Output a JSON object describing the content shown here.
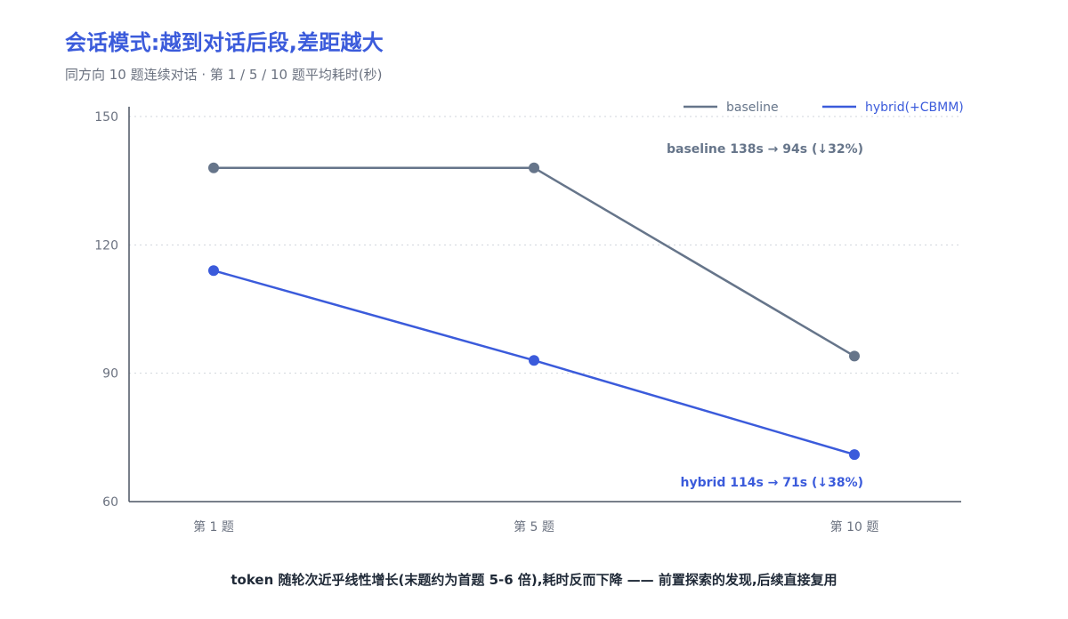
{
  "header": {
    "title": "会话模式:越到对话后段,差距越大",
    "subtitle": "同方向 10 题连续对话 · 第 1 / 5 / 10 题平均耗时(秒)"
  },
  "footer": {
    "note": "token 随轮次近乎线性增长(末题约为首题 5-6 倍),耗时反而下降 —— 前置探索的发现,后续直接复用"
  },
  "colors": {
    "baseline": "#66758a",
    "hybrid": "#3b5bdb",
    "grid": "#d1d5db",
    "axis": "#4b5563"
  },
  "chart_data": {
    "type": "line",
    "categories": [
      "第 1 题",
      "第 5 题",
      "第 10 题"
    ],
    "series": [
      {
        "name": "baseline",
        "values": [
          138,
          138,
          94
        ]
      },
      {
        "name": "hybrid(+CBMM)",
        "values": [
          114,
          93,
          71
        ]
      }
    ],
    "ylim": [
      60,
      150
    ],
    "yticks": [
      60,
      90,
      120,
      150
    ],
    "grid": true,
    "legend_position": "top-right",
    "annotations": {
      "baseline": "baseline 138s → 94s (↓32%)",
      "hybrid": "hybrid 114s → 71s (↓38%)"
    }
  }
}
